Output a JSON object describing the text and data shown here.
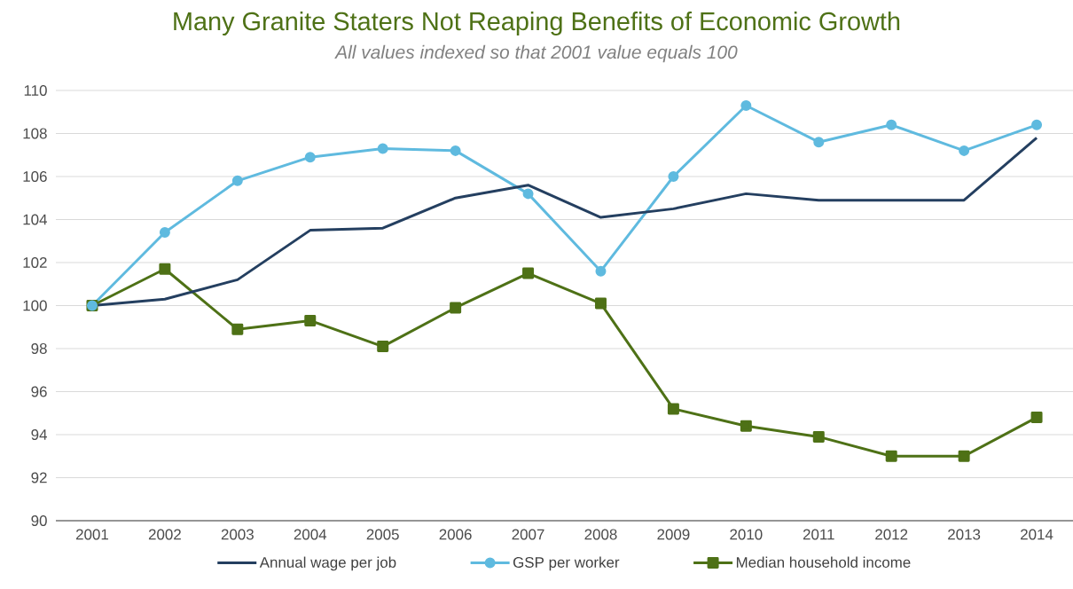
{
  "chart_data": {
    "type": "line",
    "title": "Many Granite Staters Not Reaping Benefits of Economic Growth",
    "subtitle": "All values indexed so that 2001 value equals 100",
    "categories": [
      "2001",
      "2002",
      "2003",
      "2004",
      "2005",
      "2006",
      "2007",
      "2008",
      "2009",
      "2010",
      "2011",
      "2012",
      "2013",
      "2014"
    ],
    "series": [
      {
        "name": "Annual wage per job",
        "color": "#243f60",
        "marker": "none",
        "values": [
          100,
          100.3,
          101.2,
          103.5,
          103.6,
          105.0,
          105.6,
          104.1,
          104.5,
          105.2,
          104.9,
          104.9,
          104.9,
          107.8
        ]
      },
      {
        "name": "GSP per worker",
        "color": "#5fbadf",
        "marker": "circle",
        "values": [
          100,
          103.4,
          105.8,
          106.9,
          107.3,
          107.2,
          105.2,
          101.6,
          106.0,
          109.3,
          107.6,
          108.4,
          107.2,
          108.4
        ]
      },
      {
        "name": "Median household income",
        "color": "#4e7116",
        "marker": "square",
        "values": [
          100,
          101.7,
          98.9,
          99.3,
          98.1,
          99.9,
          101.5,
          100.1,
          95.2,
          94.4,
          93.9,
          93.0,
          93.0,
          94.8
        ]
      }
    ],
    "ylim": [
      90,
      110
    ],
    "yticks": [
      90,
      92,
      94,
      96,
      98,
      100,
      102,
      104,
      106,
      108,
      110
    ],
    "grid": "y",
    "legend": "bottom",
    "line_style": "solid"
  }
}
